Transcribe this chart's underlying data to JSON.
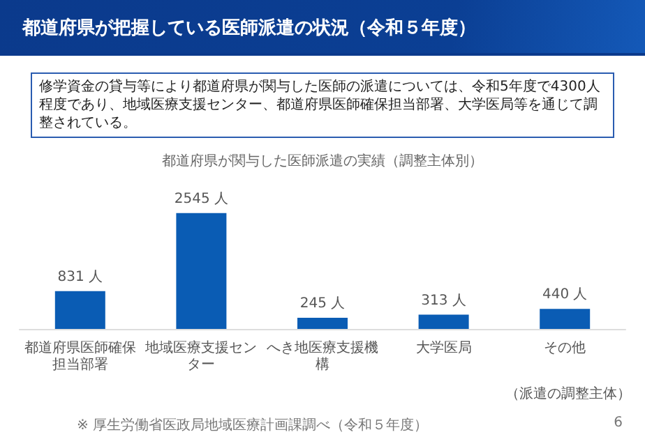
{
  "chart_data": {
    "type": "bar",
    "title": "都道府県が把握している医師派遣の状況（令和５年度）",
    "subtitle": "都道府県が関与した医師派遣の実績（調整主体別）",
    "categories": [
      "都道府県医師確保担当部署",
      "地域医療支援センター",
      "へき地医療支援機構",
      "大学医局",
      "その他"
    ],
    "values": [
      831,
      2545,
      245,
      313,
      440
    ],
    "value_labels": [
      "831 人",
      "2545 人",
      "245 人",
      "313 人",
      "440 人"
    ],
    "color": "#0a5cb4",
    "xlabel": "（派遣の調整主体）",
    "grid": false,
    "annotations": [
      "修学資金の貸与等により都道府県が関与した医師の派遣については、令和5年度で4300人程度であり、地域医療支援センター、都道府県医師確保担当部署、大学医局等を通じて調整されている。",
      "※ 厚生労働省医政局地域医療計画課調べ（令和５年度）",
      "6"
    ]
  }
}
